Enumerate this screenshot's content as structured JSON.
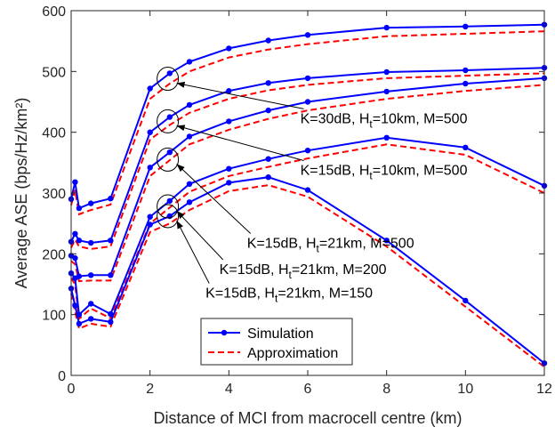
{
  "chart_data": {
    "type": "line",
    "title": "",
    "xlabel": "Distance of MCI from macrocell centre (km)",
    "ylabel": "Average ASE (bps/Hz/km²)",
    "xlim": [
      0,
      12
    ],
    "ylim": [
      0,
      600
    ],
    "xticks": [
      0,
      2,
      4,
      6,
      8,
      10,
      12
    ],
    "yticks": [
      0,
      100,
      200,
      300,
      400,
      500,
      600
    ],
    "grid": false,
    "legend_position": "bottom-center",
    "legend": [
      {
        "label": "Simulation",
        "style": "solid-marker",
        "color": "#0000FF"
      },
      {
        "label": "Approximation",
        "style": "dashed",
        "color": "#FF0000"
      }
    ],
    "colors": {
      "simulation": "#0000FF",
      "approximation": "#FF0000",
      "axis": "#262626"
    },
    "series": [
      {
        "annotation": [
          "K=30dB, H",
          "t",
          "=10km, M=500"
        ],
        "simulation": {
          "x": [
            0,
            0.1,
            0.2,
            0.5,
            1,
            2,
            2.5,
            3,
            4,
            5,
            6,
            8,
            10,
            12
          ],
          "y": [
            290,
            318,
            275,
            283,
            291,
            472,
            497,
            516,
            538,
            551,
            560,
            572,
            574,
            577
          ]
        },
        "approximation": {
          "x": [
            0,
            0.1,
            0.2,
            0.5,
            1,
            2,
            2.5,
            3,
            4,
            5,
            6,
            8,
            10,
            12
          ],
          "y": [
            280,
            305,
            265,
            272,
            281,
            455,
            480,
            500,
            523,
            536,
            545,
            558,
            562,
            566
          ]
        },
        "label_anchor": {
          "x": 2.45,
          "y": 488
        },
        "label_pos": {
          "x": 5.9,
          "y": 415
        }
      },
      {
        "annotation": [
          "K=15dB, H",
          "t",
          "=10km, M=500"
        ],
        "simulation": {
          "x": [
            0,
            0.1,
            0.2,
            0.5,
            1,
            2,
            2.5,
            3,
            4,
            5,
            6,
            8,
            10,
            12
          ],
          "y": [
            220,
            233,
            222,
            218,
            222,
            400,
            425,
            445,
            468,
            481,
            489,
            499,
            502,
            506
          ]
        },
        "approximation": {
          "x": [
            0,
            0.1,
            0.2,
            0.5,
            1,
            2,
            2.5,
            3,
            4,
            5,
            6,
            8,
            10,
            12
          ],
          "y": [
            210,
            223,
            212,
            208,
            212,
            388,
            412,
            432,
            455,
            469,
            478,
            489,
            493,
            497
          ]
        },
        "label_anchor": {
          "x": 2.45,
          "y": 418
        },
        "label_pos": {
          "x": 5.9,
          "y": 330
        }
      },
      {
        "annotation": [
          "K=15dB, H",
          "t",
          "=21km, M=500"
        ],
        "simulation": {
          "x": [
            0,
            0.1,
            0.2,
            0.5,
            1,
            2,
            2.5,
            3,
            4,
            5,
            6,
            8,
            10,
            12
          ],
          "y": [
            197,
            193,
            163,
            165,
            165,
            342,
            367,
            393,
            418,
            436,
            450,
            467,
            480,
            489
          ]
        },
        "approximation": {
          "x": [
            0,
            0.1,
            0.2,
            0.5,
            1,
            2,
            2.5,
            3,
            4,
            5,
            6,
            8,
            10,
            12
          ],
          "y": [
            188,
            183,
            155,
            156,
            156,
            328,
            354,
            380,
            404,
            422,
            436,
            455,
            468,
            478
          ]
        },
        "label_anchor": {
          "x": 2.45,
          "y": 355
        },
        "label_pos": {
          "x": 4.55,
          "y": 210
        }
      },
      {
        "annotation": [
          "K=15dB, H",
          "t",
          "=21km, M=200"
        ],
        "simulation": {
          "x": [
            0,
            0.1,
            0.2,
            0.5,
            1,
            2,
            2.5,
            3,
            4,
            5,
            6,
            8,
            10,
            12
          ],
          "y": [
            168,
            160,
            100,
            118,
            101,
            261,
            287,
            315,
            340,
            356,
            370,
            391,
            375,
            312
          ]
        },
        "approximation": {
          "x": [
            0,
            0.1,
            0.2,
            0.5,
            1,
            2,
            2.5,
            3,
            4,
            5,
            6,
            8,
            10,
            12
          ],
          "y": [
            160,
            150,
            93,
            110,
            94,
            250,
            276,
            302,
            328,
            343,
            357,
            380,
            363,
            300
          ]
        },
        "label_anchor": {
          "x": 2.45,
          "y": 278
        },
        "label_pos": {
          "x": 3.85,
          "y": 167
        }
      },
      {
        "annotation": [
          "K=15dB, H",
          "t",
          "=21km, M=150"
        ],
        "simulation": {
          "x": [
            0,
            0.1,
            0.2,
            0.5,
            1,
            2,
            2.5,
            3,
            4,
            5,
            6,
            8,
            10,
            12
          ],
          "y": [
            143,
            115,
            85,
            93,
            88,
            248,
            262,
            285,
            317,
            326,
            305,
            222,
            123,
            20
          ]
        },
        "approximation": {
          "x": [
            0,
            0.1,
            0.2,
            0.5,
            1,
            2,
            2.5,
            3,
            4,
            5,
            6,
            8,
            10,
            12
          ],
          "y": [
            135,
            105,
            77,
            85,
            80,
            236,
            250,
            272,
            303,
            313,
            294,
            212,
            113,
            14
          ]
        },
        "label_anchor": {
          "x": 2.45,
          "y": 262
        },
        "label_pos": {
          "x": 3.5,
          "y": 128
        }
      }
    ]
  }
}
